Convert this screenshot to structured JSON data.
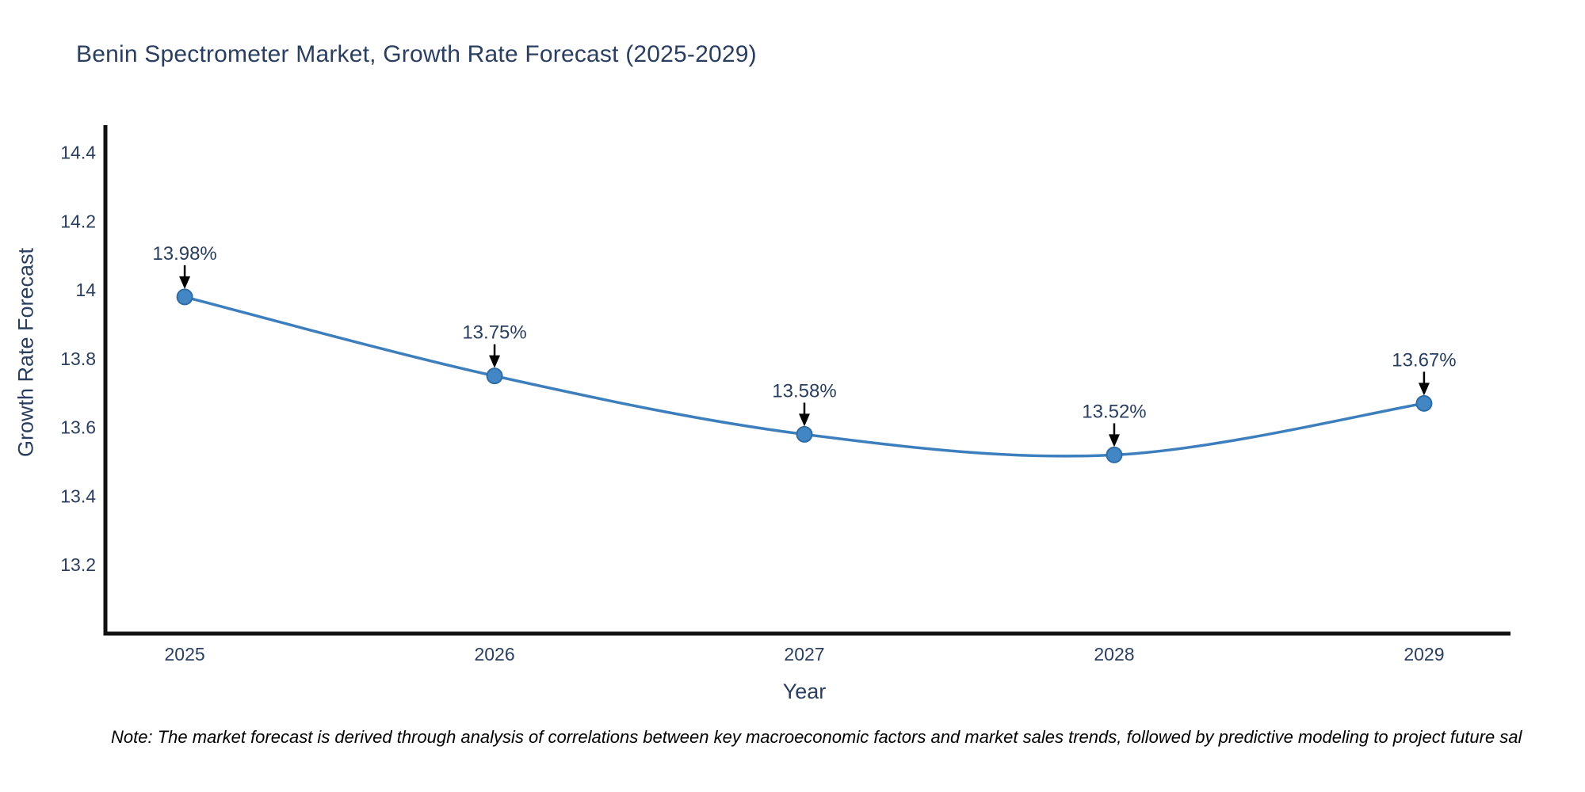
{
  "title": "Benin Spectrometer Market, Growth Rate Forecast (2025-2029)",
  "note": "Note: The market forecast is derived through analysis of correlations between key macroeconomic factors and market sales trends, followed by predictive modeling to project future sal",
  "chart_data": {
    "type": "line",
    "title": "Benin Spectrometer Market, Growth Rate Forecast (2025-2029)",
    "xlabel": "Year",
    "ylabel": "Growth Rate Forecast",
    "x": [
      2025,
      2026,
      2027,
      2028,
      2029
    ],
    "values": [
      13.98,
      13.75,
      13.58,
      13.52,
      13.67
    ],
    "point_labels": [
      "13.98%",
      "13.75%",
      "13.58%",
      "13.52%",
      "13.67%"
    ],
    "xtick_labels": [
      "2025",
      "2026",
      "2027",
      "2028",
      "2029"
    ],
    "yticks": [
      13.2,
      13.4,
      13.6,
      13.8,
      14,
      14.2,
      14.4
    ],
    "ytick_labels": [
      "13.2",
      "13.4",
      "13.6",
      "13.8",
      "14",
      "14.2",
      "14.4"
    ],
    "xlim": [
      2024.744,
      2029.279
    ],
    "ylim": [
      13.0,
      14.48
    ],
    "line_shape": "spline",
    "grid": false,
    "legend": "none",
    "colors": {
      "line": "#3d7ebd",
      "marker_fill": "#4286c5",
      "marker_edge": "#2e6da4",
      "axis": "#111111",
      "text": "#2a3f5f",
      "arrow": "#000000",
      "note": "#000000"
    }
  }
}
